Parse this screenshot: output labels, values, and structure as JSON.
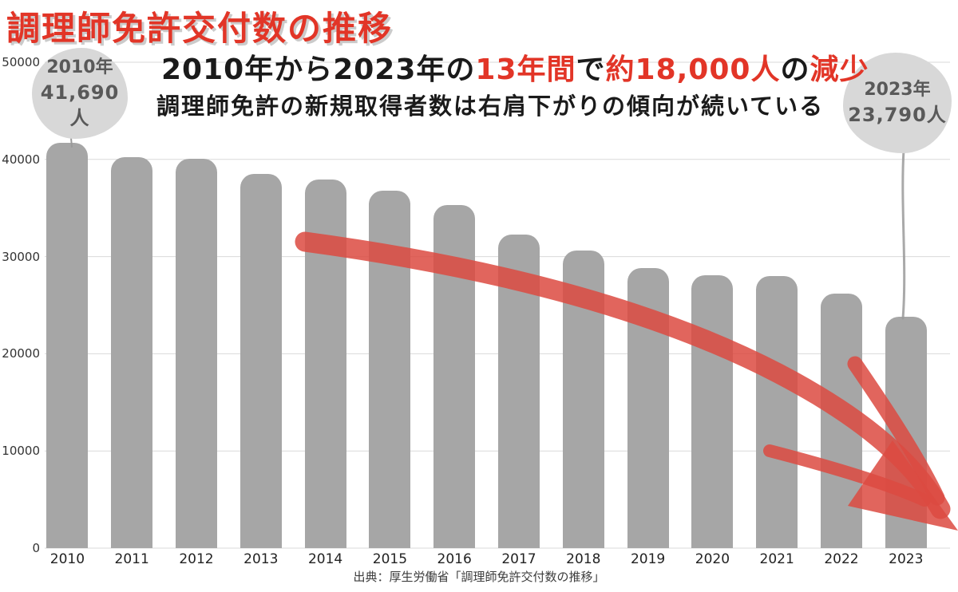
{
  "title": "調理師免許交付数の推移",
  "headline": {
    "line1_segments": [
      {
        "text": "2010年から2023年の",
        "color": "black"
      },
      {
        "text": "13年間",
        "color": "red"
      },
      {
        "text": "で",
        "color": "black"
      },
      {
        "text": "約18,000人",
        "color": "red"
      },
      {
        "text": "の",
        "color": "black"
      },
      {
        "text": "減少",
        "color": "red"
      }
    ],
    "line2": "調理師免許の新規取得者数は右肩下がりの傾向が続いている"
  },
  "callouts": {
    "left": {
      "year": "2010年",
      "value": "41,690人"
    },
    "right": {
      "year": "2023年",
      "value": "23,790人"
    }
  },
  "source": "出典：厚生労働省「調理師免許交付数の推移」",
  "colors": {
    "accent_red": "#e23527",
    "arrow_red": "#dc4a41",
    "bar_gray": "#a6a6a6",
    "blob_gray": "#d8d8d8",
    "callout_text": "#595959",
    "gridline": "#d9d9d9",
    "title_shadow": "#cbcbcb"
  },
  "chart_data": {
    "type": "bar",
    "title": "調理師免許交付数の推移",
    "xlabel": "",
    "ylabel": "",
    "categories": [
      "2010",
      "2011",
      "2012",
      "2013",
      "2014",
      "2015",
      "2016",
      "2017",
      "2018",
      "2019",
      "2020",
      "2021",
      "2022",
      "2023"
    ],
    "values": [
      41690,
      40250,
      40100,
      38500,
      37900,
      36800,
      35300,
      32300,
      30600,
      28800,
      28100,
      28000,
      26200,
      23790
    ],
    "ylim": [
      0,
      50000
    ],
    "yticks": [
      0,
      10000,
      20000,
      30000,
      40000,
      50000
    ],
    "grid": true,
    "legend": "none",
    "bar_color": "#a6a6a6"
  }
}
